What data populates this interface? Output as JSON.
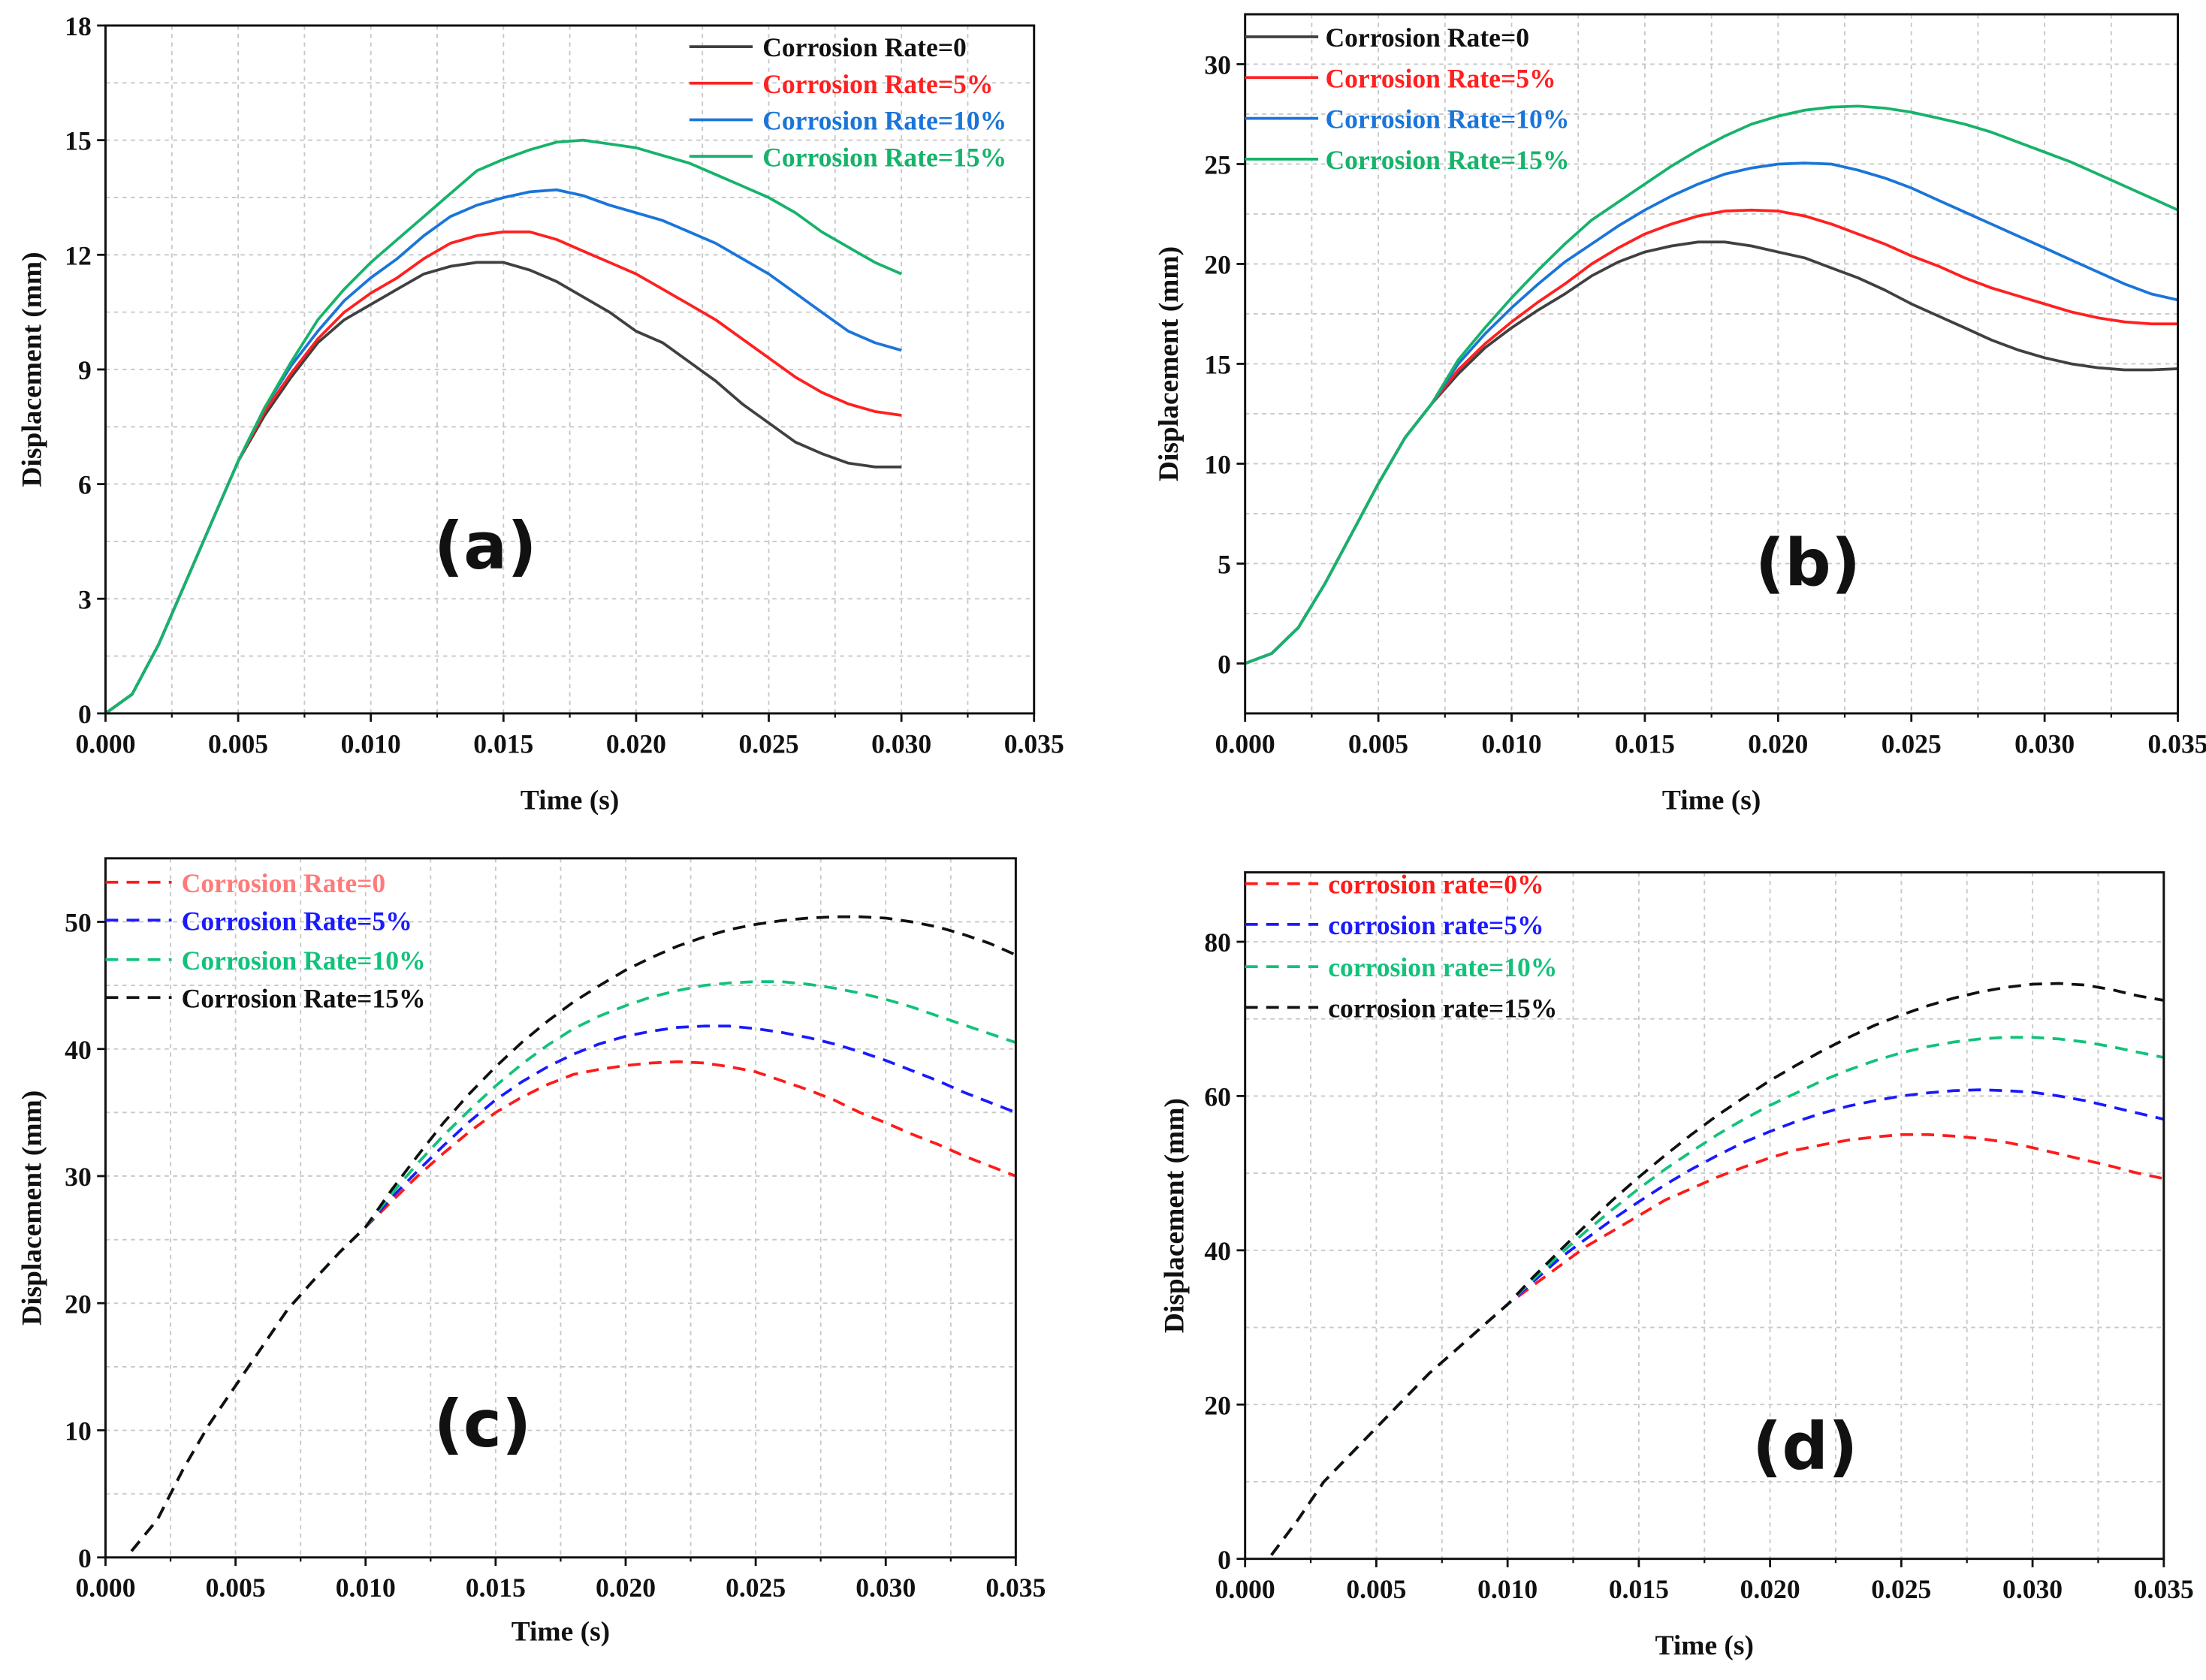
{
  "chart_data": [
    {
      "type": "line",
      "panel_label": "(a)",
      "xlabel": "Time (s)",
      "ylabel": "Displacement (mm)",
      "xlim": [
        0,
        0.035
      ],
      "ylim": [
        0,
        18
      ],
      "grid": true,
      "legend_position": "top-right",
      "x_ticks": [
        0,
        0.005,
        0.01,
        0.015,
        0.02,
        0.025,
        0.03,
        0.035
      ],
      "x_tick_labels": [
        "0.000",
        "0.005",
        "0.010",
        "0.015",
        "0.020",
        "0.025",
        "0.030",
        "0.035"
      ],
      "y_ticks": [
        0,
        3,
        6,
        9,
        12,
        15,
        18
      ],
      "y_tick_labels": [
        "0",
        "3",
        "6",
        "9",
        "12",
        "15",
        "18"
      ],
      "line_style": "solid",
      "x": [
        0,
        0.001,
        0.002,
        0.003,
        0.004,
        0.005,
        0.006,
        0.007,
        0.008,
        0.009,
        0.01,
        0.011,
        0.012,
        0.013,
        0.014,
        0.015,
        0.016,
        0.017,
        0.018,
        0.019,
        0.02,
        0.021,
        0.022,
        0.023,
        0.024,
        0.025,
        0.026,
        0.027,
        0.028,
        0.029,
        0.03
      ],
      "series": [
        {
          "name": "Corrosion Rate=0",
          "color": "#404040",
          "label_color": "#111111",
          "y": [
            0,
            0.5,
            1.8,
            3.4,
            5.0,
            6.6,
            7.8,
            8.8,
            9.7,
            10.3,
            10.7,
            11.1,
            11.5,
            11.7,
            11.8,
            11.8,
            11.6,
            11.3,
            10.9,
            10.5,
            10.0,
            9.7,
            9.2,
            8.7,
            8.1,
            7.6,
            7.1,
            6.8,
            6.55,
            6.45,
            6.45
          ]
        },
        {
          "name": "Corrosion Rate=5%",
          "color": "#ff2020",
          "label_color": "#ff2020",
          "y": [
            0,
            0.5,
            1.8,
            3.4,
            5.0,
            6.6,
            7.9,
            8.9,
            9.8,
            10.5,
            11.0,
            11.4,
            11.9,
            12.3,
            12.5,
            12.6,
            12.6,
            12.4,
            12.1,
            11.8,
            11.5,
            11.1,
            10.7,
            10.3,
            9.8,
            9.3,
            8.8,
            8.4,
            8.1,
            7.9,
            7.8
          ]
        },
        {
          "name": "Corrosion Rate=10%",
          "color": "#1a75d9",
          "label_color": "#1a75d9",
          "y": [
            0,
            0.5,
            1.8,
            3.4,
            5.0,
            6.6,
            8.0,
            9.1,
            10.0,
            10.8,
            11.4,
            11.9,
            12.5,
            13.0,
            13.3,
            13.5,
            13.65,
            13.7,
            13.55,
            13.3,
            13.1,
            12.9,
            12.6,
            12.3,
            11.9,
            11.5,
            11.0,
            10.5,
            10.0,
            9.7,
            9.5
          ]
        },
        {
          "name": "Corrosion Rate=15%",
          "color": "#16b36b",
          "label_color": "#16b36b",
          "y": [
            0,
            0.5,
            1.8,
            3.4,
            5.0,
            6.6,
            8.0,
            9.2,
            10.3,
            11.1,
            11.8,
            12.4,
            13.0,
            13.6,
            14.2,
            14.5,
            14.75,
            14.95,
            15.0,
            14.9,
            14.8,
            14.6,
            14.4,
            14.1,
            13.8,
            13.5,
            13.1,
            12.6,
            12.2,
            11.8,
            11.5
          ]
        }
      ]
    },
    {
      "type": "line",
      "panel_label": "(b)",
      "xlabel": "Time (s)",
      "ylabel": "Displacement (mm)",
      "xlim": [
        0,
        0.035
      ],
      "ylim": [
        -2.5,
        32.5
      ],
      "grid": true,
      "legend_position": "top-left",
      "x_ticks": [
        0,
        0.005,
        0.01,
        0.015,
        0.02,
        0.025,
        0.03,
        0.035
      ],
      "x_tick_labels": [
        "0.000",
        "0.005",
        "0.010",
        "0.015",
        "0.020",
        "0.025",
        "0.030",
        "0.035"
      ],
      "y_ticks": [
        0,
        5,
        10,
        15,
        20,
        25,
        30
      ],
      "y_tick_labels": [
        "0",
        "5",
        "10",
        "15",
        "20",
        "25",
        "30"
      ],
      "line_style": "solid",
      "x": [
        0,
        0.001,
        0.002,
        0.003,
        0.004,
        0.005,
        0.006,
        0.007,
        0.008,
        0.009,
        0.01,
        0.011,
        0.012,
        0.013,
        0.014,
        0.015,
        0.016,
        0.017,
        0.018,
        0.019,
        0.02,
        0.021,
        0.022,
        0.023,
        0.024,
        0.025,
        0.026,
        0.027,
        0.028,
        0.029,
        0.03,
        0.031,
        0.032,
        0.033,
        0.034,
        0.035
      ],
      "series": [
        {
          "name": "Corrosion Rate=0",
          "color": "#404040",
          "label_color": "#111111",
          "y": [
            0,
            0.5,
            1.8,
            4.0,
            6.5,
            9.0,
            11.3,
            13.0,
            14.5,
            15.8,
            16.8,
            17.7,
            18.5,
            19.4,
            20.1,
            20.6,
            20.9,
            21.1,
            21.1,
            20.9,
            20.6,
            20.3,
            19.8,
            19.3,
            18.7,
            18.0,
            17.4,
            16.8,
            16.2,
            15.7,
            15.3,
            15.0,
            14.8,
            14.7,
            14.7,
            14.75
          ]
        },
        {
          "name": "Corrosion Rate=5%",
          "color": "#ff2020",
          "label_color": "#ff2020",
          "y": [
            0,
            0.5,
            1.8,
            4.0,
            6.5,
            9.0,
            11.3,
            13.0,
            14.7,
            16.0,
            17.1,
            18.1,
            19.0,
            20.0,
            20.8,
            21.5,
            22.0,
            22.4,
            22.65,
            22.7,
            22.65,
            22.4,
            22.0,
            21.5,
            21.0,
            20.4,
            19.9,
            19.3,
            18.8,
            18.4,
            18.0,
            17.6,
            17.3,
            17.1,
            17.0,
            17.0
          ]
        },
        {
          "name": "Corrosion Rate=10%",
          "color": "#1a75d9",
          "label_color": "#1a75d9",
          "y": [
            0,
            0.5,
            1.8,
            4.0,
            6.5,
            9.0,
            11.3,
            13.0,
            15.0,
            16.5,
            17.8,
            19.0,
            20.1,
            21.0,
            21.9,
            22.7,
            23.4,
            24.0,
            24.5,
            24.8,
            25.0,
            25.05,
            25.0,
            24.7,
            24.3,
            23.8,
            23.2,
            22.6,
            22.0,
            21.4,
            20.8,
            20.2,
            19.6,
            19.0,
            18.5,
            18.2
          ]
        },
        {
          "name": "Corrosion Rate=15%",
          "color": "#16b36b",
          "label_color": "#16b36b",
          "y": [
            0,
            0.5,
            1.8,
            4.0,
            6.5,
            9.0,
            11.3,
            13.0,
            15.2,
            16.8,
            18.3,
            19.7,
            21.0,
            22.2,
            23.1,
            24.0,
            24.9,
            25.7,
            26.4,
            27.0,
            27.4,
            27.7,
            27.85,
            27.9,
            27.8,
            27.6,
            27.3,
            27.0,
            26.6,
            26.1,
            25.6,
            25.1,
            24.5,
            23.9,
            23.3,
            22.7
          ]
        }
      ]
    },
    {
      "type": "line",
      "panel_label": "(c)",
      "xlabel": "Time (s)",
      "ylabel": "Displacement (mm)",
      "xlim": [
        0,
        0.035
      ],
      "ylim": [
        0,
        55
      ],
      "grid": true,
      "legend_position": "top-left",
      "x_ticks": [
        0,
        0.005,
        0.01,
        0.015,
        0.02,
        0.025,
        0.03,
        0.035
      ],
      "x_tick_labels": [
        "0.000",
        "0.005",
        "0.010",
        "0.015",
        "0.020",
        "0.025",
        "0.030",
        "0.035"
      ],
      "y_ticks": [
        0,
        10,
        20,
        30,
        40,
        50
      ],
      "y_tick_labels": [
        "0",
        "10",
        "20",
        "30",
        "40",
        "50"
      ],
      "line_style": "dashed",
      "x": [
        0.001,
        0.002,
        0.003,
        0.004,
        0.005,
        0.006,
        0.007,
        0.008,
        0.009,
        0.01,
        0.011,
        0.012,
        0.013,
        0.014,
        0.015,
        0.016,
        0.017,
        0.018,
        0.019,
        0.02,
        0.021,
        0.022,
        0.023,
        0.024,
        0.025,
        0.026,
        0.027,
        0.028,
        0.029,
        0.03,
        0.031,
        0.032,
        0.033,
        0.034,
        0.035
      ],
      "series": [
        {
          "name": "Corrosion Rate=0",
          "color": "#ff1a1a",
          "label_color": "#ff7a7a",
          "y": [
            0.5,
            3,
            7,
            10.5,
            13.5,
            16.5,
            19.5,
            21.8,
            24,
            26,
            28,
            30,
            31.8,
            33.5,
            35,
            36.2,
            37.2,
            38,
            38.4,
            38.7,
            38.9,
            39,
            38.9,
            38.6,
            38.2,
            37.5,
            36.8,
            36.0,
            35.0,
            34.2,
            33.3,
            32.5,
            31.6,
            30.8,
            30.0
          ]
        },
        {
          "name": "Corrosion Rate=5%",
          "color": "#1a1aff",
          "label_color": "#1a1aff",
          "y": [
            0.5,
            3,
            7,
            10.5,
            13.5,
            16.5,
            19.5,
            21.8,
            24,
            26,
            28.3,
            30.4,
            32.4,
            34.3,
            36,
            37.4,
            38.6,
            39.6,
            40.4,
            41,
            41.4,
            41.7,
            41.8,
            41.8,
            41.6,
            41.3,
            40.9,
            40.4,
            39.8,
            39.1,
            38.3,
            37.5,
            36.6,
            35.8,
            35.0
          ]
        },
        {
          "name": "Corrosion Rate=10%",
          "color": "#12c27a",
          "label_color": "#12c27a",
          "y": [
            0.5,
            3,
            7,
            10.5,
            13.5,
            16.5,
            19.5,
            21.8,
            24,
            26,
            28.6,
            31,
            33.2,
            35.2,
            37.1,
            38.8,
            40.3,
            41.6,
            42.6,
            43.4,
            44.1,
            44.6,
            45.0,
            45.2,
            45.3,
            45.3,
            45.1,
            44.8,
            44.4,
            43.9,
            43.3,
            42.6,
            41.9,
            41.2,
            40.5
          ]
        },
        {
          "name": "Corrosion Rate=15%",
          "color": "#111111",
          "label_color": "#111111",
          "y": [
            0.5,
            3,
            7,
            10.5,
            13.5,
            16.5,
            19.5,
            21.8,
            24,
            26,
            28.9,
            31.6,
            34.2,
            36.5,
            38.6,
            40.5,
            42.2,
            43.7,
            45,
            46.2,
            47.2,
            48.1,
            48.8,
            49.4,
            49.8,
            50.1,
            50.3,
            50.4,
            50.4,
            50.3,
            50.0,
            49.6,
            49.0,
            48.3,
            47.4
          ]
        }
      ]
    },
    {
      "type": "line",
      "panel_label": "(d)",
      "xlabel": "Time (s)",
      "ylabel": "Displacement (mm)",
      "xlim": [
        0,
        0.035
      ],
      "ylim": [
        0,
        89
      ],
      "grid": true,
      "legend_position": "top-left",
      "x_ticks": [
        0,
        0.005,
        0.01,
        0.015,
        0.02,
        0.025,
        0.03,
        0.035
      ],
      "x_tick_labels": [
        "0.000",
        "0.005",
        "0.010",
        "0.015",
        "0.020",
        "0.025",
        "0.030",
        "0.035"
      ],
      "y_ticks": [
        0,
        20,
        40,
        60,
        80
      ],
      "y_tick_labels": [
        "0",
        "20",
        "40",
        "60",
        "80"
      ],
      "line_style": "dashed",
      "x": [
        0.001,
        0.002,
        0.003,
        0.004,
        0.005,
        0.006,
        0.007,
        0.008,
        0.009,
        0.01,
        0.011,
        0.012,
        0.013,
        0.014,
        0.015,
        0.016,
        0.017,
        0.018,
        0.019,
        0.02,
        0.021,
        0.022,
        0.023,
        0.024,
        0.025,
        0.026,
        0.027,
        0.028,
        0.029,
        0.03,
        0.031,
        0.032,
        0.033,
        0.034,
        0.035
      ],
      "series": [
        {
          "name": "corrosion rate=0%",
          "color": "#ff1a1a",
          "label_color": "#ff1a1a",
          "y": [
            0.5,
            5,
            10,
            13.5,
            17,
            20.5,
            24,
            27,
            30,
            33,
            35.5,
            38,
            40.5,
            42.5,
            44.5,
            46.5,
            48,
            49.5,
            50.8,
            52,
            53,
            53.7,
            54.3,
            54.7,
            55,
            55,
            54.8,
            54.5,
            54,
            53.3,
            52.5,
            51.7,
            50.9,
            50,
            49.3
          ]
        },
        {
          "name": "corrosion rate=5%",
          "color": "#1a1aff",
          "label_color": "#1a1aff",
          "y": [
            0.5,
            5,
            10,
            13.5,
            17,
            20.5,
            24,
            27,
            30,
            33,
            36,
            39,
            41.5,
            44,
            46.3,
            48.5,
            50.5,
            52.3,
            54,
            55.4,
            56.7,
            57.8,
            58.7,
            59.4,
            60,
            60.4,
            60.7,
            60.8,
            60.7,
            60.5,
            60,
            59.4,
            58.6,
            57.8,
            57
          ]
        },
        {
          "name": "corrosion rate=10%",
          "color": "#12c27a",
          "label_color": "#12c27a",
          "y": [
            0.5,
            5,
            10,
            13.5,
            17,
            20.5,
            24,
            27,
            30,
            33,
            36.3,
            39.5,
            42.5,
            45.3,
            48,
            50.5,
            52.8,
            55,
            57,
            58.8,
            60.4,
            62,
            63.4,
            64.6,
            65.6,
            66.4,
            67,
            67.4,
            67.6,
            67.6,
            67.4,
            67,
            66.4,
            65.7,
            65
          ]
        },
        {
          "name": "corrosion rate=15%",
          "color": "#111111",
          "label_color": "#111111",
          "y": [
            0.5,
            5,
            10,
            13.5,
            17,
            20.5,
            24,
            27,
            30,
            33,
            36.6,
            40,
            43.3,
            46.5,
            49.5,
            52.3,
            55,
            57.5,
            59.8,
            62,
            64,
            65.9,
            67.6,
            69.2,
            70.5,
            71.7,
            72.7,
            73.5,
            74.1,
            74.5,
            74.6,
            74.4,
            73.8,
            73,
            72.4
          ]
        }
      ]
    }
  ]
}
